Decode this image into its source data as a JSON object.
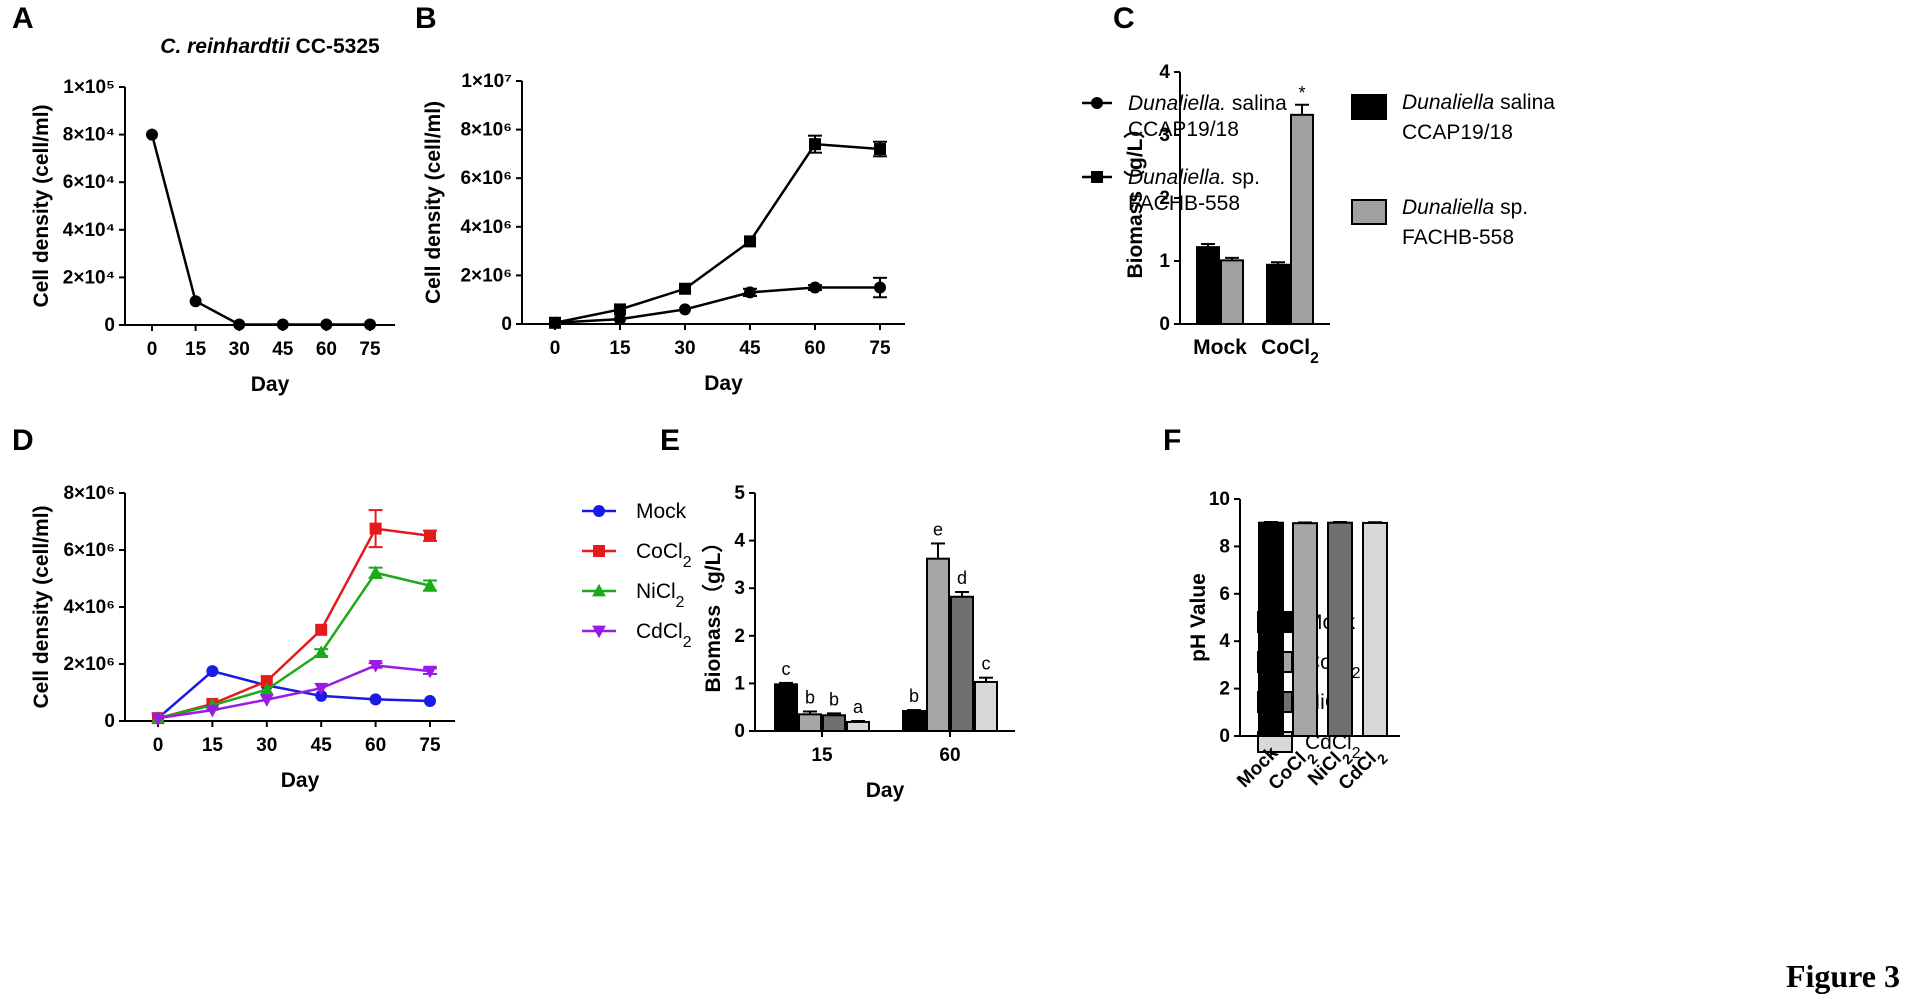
{
  "figure_label": "Figure 3",
  "chart_data": [
    {
      "panel": "A",
      "type": "line",
      "title": "C. reinhardtii CC-5325",
      "xlabel": "Day",
      "ylabel": "Cell density (cell/ml)",
      "x": [
        0,
        15,
        30,
        45,
        60,
        75
      ],
      "ylim": [
        0,
        100000
      ],
      "yticks": [
        0,
        20000,
        40000,
        60000,
        80000,
        100000
      ],
      "ytick_labels": [
        "0",
        "2×10⁴",
        "4×10⁴",
        "6×10⁴",
        "8×10⁴",
        "1×10⁵"
      ],
      "series": [
        {
          "name": "CC-5325",
          "marker": "circle",
          "color": "#000000",
          "values": [
            80000,
            10000,
            200,
            200,
            200,
            200
          ]
        }
      ]
    },
    {
      "panel": "B",
      "type": "line",
      "xlabel": "Day",
      "ylabel": "Cell density (cell/ml)",
      "x": [
        0,
        15,
        30,
        45,
        60,
        75
      ],
      "ylim": [
        0,
        10000000
      ],
      "yticks": [
        0,
        2000000,
        4000000,
        6000000,
        8000000,
        10000000
      ],
      "ytick_labels": [
        "0",
        "2×10⁶",
        "4×10⁶",
        "6×10⁶",
        "8×10⁶",
        "1×10⁷"
      ],
      "series": [
        {
          "name_italic": "Dunaliella.",
          "name_rest": " salina",
          "name_line2": "CCAP19/18",
          "marker": "circle",
          "color": "#000000",
          "values": [
            50000,
            200000,
            600000,
            1300000,
            1500000,
            1500000
          ],
          "errors": [
            0,
            0,
            0,
            150000,
            100000,
            400000
          ]
        },
        {
          "name_italic": "Dunaliella.",
          "name_rest": " sp.",
          "name_line2": "FACHB-558",
          "marker": "square",
          "color": "#000000",
          "values": [
            50000,
            600000,
            1450000,
            3400000,
            7400000,
            7200000
          ],
          "errors": [
            0,
            0,
            0,
            0,
            350000,
            300000
          ]
        }
      ]
    },
    {
      "panel": "C",
      "type": "bar",
      "xlabel": "",
      "ylabel": "Biomass（g/L）",
      "categories": [
        "Mock",
        "CoCl₂"
      ],
      "ylim": [
        0,
        4
      ],
      "yticks": [
        0,
        1,
        2,
        3,
        4
      ],
      "ytick_labels": [
        "0",
        "1",
        "2",
        "3",
        "4"
      ],
      "series": [
        {
          "name_italic": "Dunaliella",
          "name_rest": " salina",
          "name_line2": "CCAP19/18",
          "color": "#000000",
          "values": [
            1.22,
            0.94
          ],
          "errors": [
            0.05,
            0.04
          ]
        },
        {
          "name_italic": "Dunaliella",
          "name_rest": " sp.",
          "name_line2": "FACHB-558",
          "color": "#a0a0a0",
          "values": [
            1.01,
            3.32
          ],
          "errors": [
            0.04,
            0.16
          ]
        }
      ],
      "annotations": [
        {
          "category": 1,
          "series": 1,
          "text": "*"
        }
      ]
    },
    {
      "panel": "D",
      "type": "line",
      "xlabel": "Day",
      "ylabel": "Cell density (cell/ml)",
      "x": [
        0,
        15,
        30,
        45,
        60,
        75
      ],
      "ylim": [
        0,
        8000000
      ],
      "yticks": [
        0,
        2000000,
        4000000,
        6000000,
        8000000
      ],
      "ytick_labels": [
        "0",
        "2×10⁶",
        "4×10⁶",
        "6×10⁶",
        "8×10⁶"
      ],
      "series": [
        {
          "name": "Mock",
          "marker": "circle",
          "color": "#1a1ae6",
          "values": [
            100000,
            1750000,
            1250000,
            880000,
            760000,
            700000
          ],
          "errors": [
            0,
            0,
            0,
            0,
            0,
            0
          ]
        },
        {
          "name": "CoCl",
          "sub": "2",
          "marker": "square",
          "color": "#e61a1a",
          "values": [
            100000,
            600000,
            1400000,
            3200000,
            6750000,
            6500000
          ],
          "errors": [
            0,
            0,
            0,
            0,
            650000,
            180000
          ]
        },
        {
          "name": "NiCl",
          "sub": "2",
          "marker": "triangle-up",
          "color": "#1aaa1a",
          "values": [
            100000,
            550000,
            1100000,
            2400000,
            5200000,
            4750000
          ],
          "errors": [
            0,
            0,
            0,
            120000,
            180000,
            180000
          ]
        },
        {
          "name": "CdCl",
          "sub": "2",
          "marker": "triangle-down",
          "color": "#9a1ae6",
          "values": [
            100000,
            380000,
            750000,
            1150000,
            1950000,
            1750000
          ],
          "errors": [
            0,
            0,
            0,
            0,
            80000,
            100000
          ]
        }
      ]
    },
    {
      "panel": "E",
      "type": "bar",
      "xlabel": "Day",
      "ylabel": "Biomass（g/L）",
      "categories": [
        "15",
        "60"
      ],
      "ylim": [
        0,
        5
      ],
      "yticks": [
        0,
        1,
        2,
        3,
        4,
        5
      ],
      "ytick_labels": [
        "0",
        "1",
        "2",
        "3",
        "4",
        "5"
      ],
      "series": [
        {
          "name": "Mock",
          "color": "#000000",
          "values": [
            0.98,
            0.42
          ],
          "errors": [
            0.03,
            0.02
          ],
          "letters": [
            "c",
            "b"
          ]
        },
        {
          "name": "CoCl",
          "sub": "2",
          "color": "#a6a6a6",
          "values": [
            0.35,
            3.62
          ],
          "errors": [
            0.06,
            0.32
          ],
          "letters": [
            "b",
            "e"
          ]
        },
        {
          "name": "NiCl",
          "sub": "2",
          "color": "#707070",
          "values": [
            0.33,
            2.82
          ],
          "errors": [
            0.04,
            0.1
          ],
          "letters": [
            "b",
            "d"
          ]
        },
        {
          "name": "CdCl",
          "sub": "2",
          "color": "#d8d8d8",
          "values": [
            0.19,
            1.03
          ],
          "errors": [
            0.02,
            0.09
          ],
          "letters": [
            "a",
            "c"
          ]
        }
      ]
    },
    {
      "panel": "F",
      "type": "bar",
      "xlabel": "",
      "ylabel": "pH Value",
      "categories": [
        "Mock",
        "CoCl",
        "NiCl",
        "CdCl"
      ],
      "category_subs": [
        "",
        "2",
        "2",
        "2"
      ],
      "ylim": [
        0,
        10
      ],
      "yticks": [
        0,
        2,
        4,
        6,
        8,
        10
      ],
      "ytick_labels": [
        "0",
        "2",
        "4",
        "6",
        "8",
        "10"
      ],
      "colors": [
        "#000000",
        "#a6a6a6",
        "#707070",
        "#d8d8d8"
      ],
      "values": [
        9.0,
        8.98,
        9.0,
        8.99
      ],
      "errors": [
        0.03,
        0.03,
        0.03,
        0.03
      ]
    }
  ]
}
